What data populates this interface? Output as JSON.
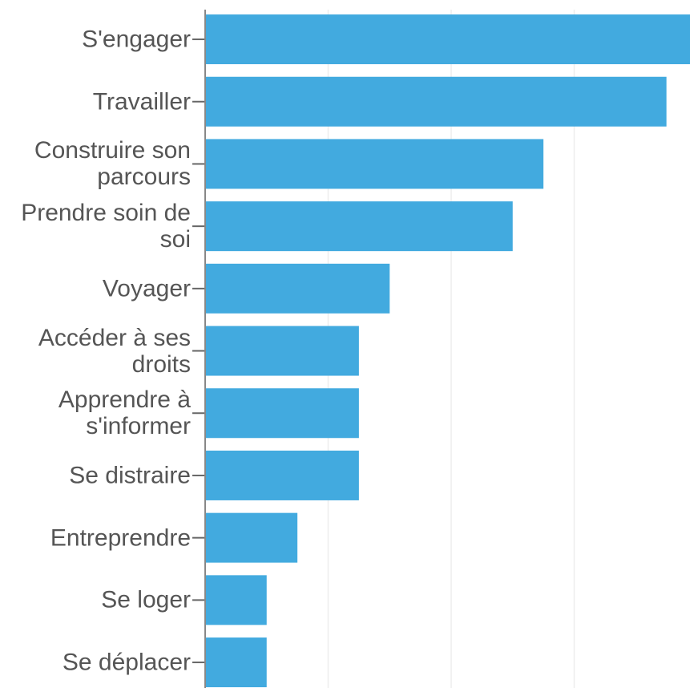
{
  "chart_data": {
    "type": "barh",
    "categories": [
      "S'engager",
      "Travailler",
      "Construire son parcours",
      "Prendre soin de soi",
      "Voyager",
      "Accéder à ses droits",
      "Apprendre à s'informer",
      "Se distraire",
      "Entreprendre",
      "Se loger",
      "Se déplacer"
    ],
    "values": [
      16,
      15,
      11,
      10,
      6,
      5,
      5,
      5,
      3,
      2,
      2
    ],
    "color": "#42aadf",
    "xlim": [
      0,
      16
    ],
    "xticks": [
      0,
      4,
      8,
      12,
      16
    ],
    "grid": true
  }
}
